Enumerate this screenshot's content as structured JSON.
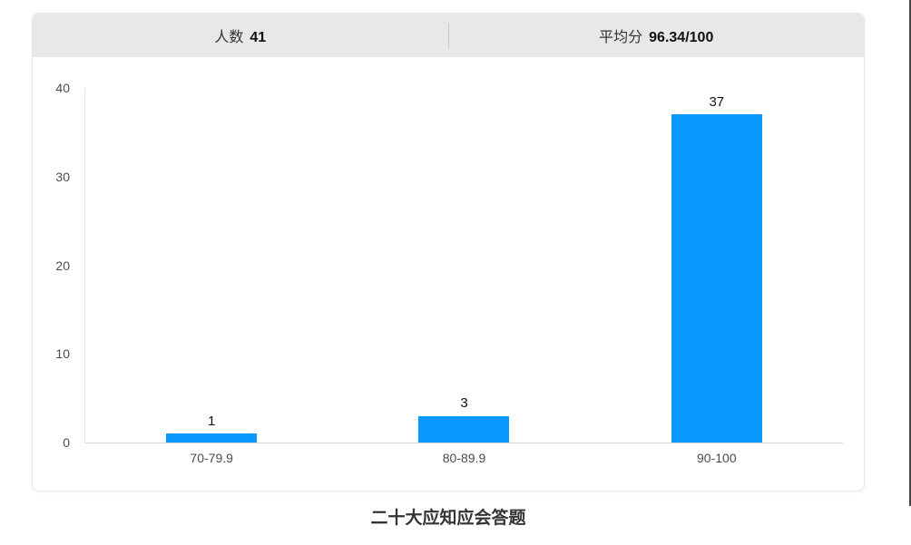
{
  "stats_header": {
    "left_label": "人数",
    "left_value": "41",
    "right_label": "平均分",
    "right_value": "96.34/100"
  },
  "chart_data": {
    "type": "bar",
    "title": "二十大应知应会答题",
    "categories": [
      "70-79.9",
      "80-89.9",
      "90-100"
    ],
    "values": [
      1,
      3,
      37
    ],
    "value_labels": [
      "1",
      "3",
      "37"
    ],
    "xlabel": "",
    "ylabel": "",
    "ylim": [
      0,
      40
    ],
    "yticks": [
      0,
      10,
      20,
      30,
      40
    ],
    "grid": false,
    "legend_position": "none",
    "bar_color": "#0a98fe"
  },
  "colors": {
    "bar": "#0a98fe",
    "header_background": "#e8e8e8",
    "card_border": "#e7e7e7",
    "axis_line": "#d9d9d9",
    "text_primary": "#333333",
    "text_axis": "#4c4c4c"
  }
}
